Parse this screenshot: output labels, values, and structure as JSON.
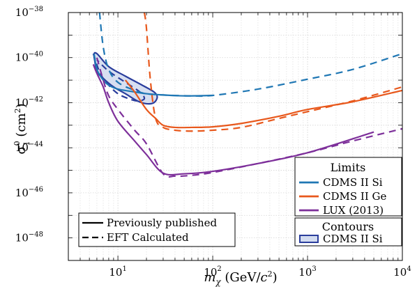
{
  "chart_data": {
    "type": "line",
    "x_scale": "log",
    "y_scale": "log",
    "xlim": [
      3,
      10000
    ],
    "ylim": [
      1e-49,
      1e-38
    ],
    "grid": true,
    "xlabel": {
      "main": "m",
      "sub": "χ",
      "unit_pre": " (GeV/",
      "unit_sym": "c",
      "unit_exp": "2",
      "unit_post": ")"
    },
    "ylabel": {
      "main": "σ",
      "sup": "0",
      "sub": "1",
      "unit_pre": " (cm",
      "unit_exp": "2",
      "unit_post": ")"
    },
    "xticks": [
      {
        "value": 10,
        "base": "10",
        "exp": "1"
      },
      {
        "value": 100,
        "base": "10",
        "exp": "2"
      },
      {
        "value": 1000,
        "base": "10",
        "exp": "3"
      },
      {
        "value": 10000,
        "base": "10",
        "exp": "4"
      }
    ],
    "yticks": [
      {
        "value": 1e-38,
        "base": "10",
        "exp": "−38"
      },
      {
        "value": 1e-40,
        "base": "10",
        "exp": "−40"
      },
      {
        "value": 1e-42,
        "base": "10",
        "exp": "−42"
      },
      {
        "value": 1e-44,
        "base": "10",
        "exp": "−44"
      },
      {
        "value": 1e-46,
        "base": "10",
        "exp": "−46"
      },
      {
        "value": 1e-48,
        "base": "10",
        "exp": "−48"
      }
    ],
    "legend_limits": {
      "title": "Limits",
      "placement": "bottom-right",
      "items": [
        {
          "label": "CDMS II Si",
          "color": "#1f77b4"
        },
        {
          "label": "CDMS II Ge",
          "color": "#e8581c"
        },
        {
          "label": "LUX (2013)",
          "color": "#7d2f9a"
        }
      ]
    },
    "legend_contours": {
      "title": "Contours",
      "placement": "bottom-right",
      "items": [
        {
          "label": "CDMS II Si",
          "color": "#2a3d9c"
        }
      ]
    },
    "legend_styles": {
      "placement": "bottom-left",
      "items": [
        {
          "label": "Previously published",
          "style": "solid"
        },
        {
          "label": "EFT Calculated",
          "style": "dashed"
        }
      ]
    },
    "series": [
      {
        "detector": "CDMS II Si",
        "kind": "EFT Calculated",
        "color": "#1f77b4",
        "style": "dashed",
        "points": [
          [
            6.4,
            1e-38
          ],
          [
            7,
            3e-40
          ],
          [
            8,
            3e-41
          ],
          [
            10,
            8e-42
          ],
          [
            15,
            3.5e-42
          ],
          [
            20,
            2.5e-42
          ],
          [
            30,
            2.2e-42
          ],
          [
            60,
            2e-42
          ],
          [
            100,
            2.1e-42
          ],
          [
            300,
            4e-42
          ],
          [
            1000,
            1.1e-41
          ],
          [
            3000,
            3e-41
          ],
          [
            10000,
            1.5e-40
          ]
        ]
      },
      {
        "detector": "CDMS II Si",
        "kind": "Previously published",
        "color": "#1f77b4",
        "style": "solid",
        "points": [
          [
            5.6,
            1.5e-40
          ],
          [
            6,
            3e-41
          ],
          [
            7,
            1e-41
          ],
          [
            8,
            6e-42
          ],
          [
            10,
            4e-42
          ],
          [
            15,
            3e-42
          ],
          [
            20,
            2.5e-42
          ],
          [
            30,
            2.2e-42
          ],
          [
            50,
            2e-42
          ],
          [
            100,
            2.1e-42
          ]
        ]
      },
      {
        "detector": "CDMS II Ge",
        "kind": "EFT Calculated",
        "color": "#e8581c",
        "style": "dashed",
        "points": [
          [
            19,
            1e-38
          ],
          [
            20,
            2e-39
          ],
          [
            22,
            1e-41
          ],
          [
            25,
            2e-43
          ],
          [
            30,
            8e-44
          ],
          [
            40,
            6e-44
          ],
          [
            60,
            5.5e-44
          ],
          [
            100,
            6e-44
          ],
          [
            200,
            8e-44
          ],
          [
            500,
            2e-43
          ],
          [
            1000,
            4e-43
          ],
          [
            3000,
            1.2e-42
          ],
          [
            10000,
            5e-42
          ]
        ]
      },
      {
        "detector": "CDMS II Ge",
        "kind": "Previously published",
        "color": "#e8581c",
        "style": "solid",
        "points": [
          [
            12,
            1e-41
          ],
          [
            15,
            3e-42
          ],
          [
            20,
            5e-43
          ],
          [
            25,
            2e-43
          ],
          [
            30,
            1e-43
          ],
          [
            40,
            8e-44
          ],
          [
            60,
            8e-44
          ],
          [
            100,
            8.5e-44
          ],
          [
            200,
            1.2e-43
          ],
          [
            500,
            2.5e-43
          ],
          [
            1000,
            5e-43
          ],
          [
            3000,
            1.1e-42
          ],
          [
            10000,
            3.5e-42
          ]
        ]
      },
      {
        "detector": "LUX (2013)",
        "kind": "EFT Calculated",
        "color": "#7d2f9a",
        "style": "dashed",
        "points": [
          [
            6,
            1e-40
          ],
          [
            7,
            1e-41
          ],
          [
            8,
            2e-42
          ],
          [
            10,
            5e-43
          ],
          [
            15,
            6e-44
          ],
          [
            20,
            1.5e-44
          ],
          [
            30,
            7e-46
          ],
          [
            40,
            5.5e-46
          ],
          [
            60,
            6e-46
          ],
          [
            100,
            8e-46
          ],
          [
            300,
            2e-45
          ],
          [
            1000,
            6e-45
          ],
          [
            3000,
            2e-44
          ],
          [
            10000,
            7e-44
          ]
        ]
      },
      {
        "detector": "LUX (2013)",
        "kind": "Previously published",
        "color": "#7d2f9a",
        "style": "solid",
        "points": [
          [
            5.5,
            5e-41
          ],
          [
            6,
            2e-41
          ],
          [
            7,
            5e-42
          ],
          [
            8,
            1e-42
          ],
          [
            10,
            1.5e-43
          ],
          [
            15,
            2e-44
          ],
          [
            20,
            5e-45
          ],
          [
            30,
            7.5e-46
          ],
          [
            50,
            7e-46
          ],
          [
            100,
            9e-46
          ],
          [
            300,
            2e-45
          ],
          [
            1000,
            6e-45
          ],
          [
            5000,
            5e-44
          ]
        ]
      }
    ],
    "contours": [
      {
        "detector": "CDMS II Si",
        "kind": "Previously published",
        "color": "#2a3d9c",
        "fill": "#d3dcf0",
        "style": "solid",
        "points": [
          [
            5.6,
            1.2e-40
          ],
          [
            6,
            2.5e-41
          ],
          [
            7,
            1.2e-41
          ],
          [
            9,
            5e-42
          ],
          [
            12,
            2.5e-42
          ],
          [
            16,
            1.2e-42
          ],
          [
            20,
            9e-43
          ],
          [
            24,
            1e-42
          ],
          [
            26,
            1.8e-42
          ],
          [
            24,
            3e-42
          ],
          [
            18,
            6e-42
          ],
          [
            12,
            1.5e-41
          ],
          [
            8,
            4e-41
          ],
          [
            6,
            1.5e-40
          ]
        ]
      },
      {
        "detector": "CDMS II Si",
        "kind": "EFT Calculated",
        "color": "#2a3d9c",
        "fill": "none",
        "style": "dashed",
        "points": [
          [
            5.5,
            1.5e-40
          ],
          [
            6.5,
            2e-41
          ],
          [
            8,
            6e-42
          ],
          [
            10,
            2.5e-42
          ],
          [
            13,
            1.5e-42
          ],
          [
            16,
            1.2e-42
          ],
          [
            19,
            1.5e-42
          ],
          [
            17,
            3e-42
          ],
          [
            12,
            8e-42
          ],
          [
            8,
            2.5e-41
          ],
          [
            6,
            8e-41
          ]
        ]
      }
    ]
  }
}
